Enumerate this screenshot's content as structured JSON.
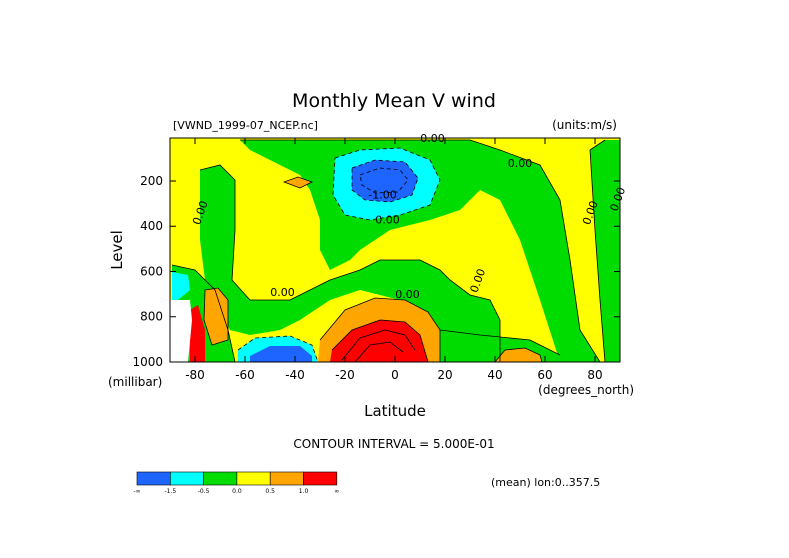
{
  "chart_data": {
    "type": "heatmap",
    "title": "Monthly Mean V wind",
    "dataset_label": "[VWND_1999-07_NCEP.nc]",
    "units_label": "(units:m/s)",
    "xlabel": "Latitude",
    "x_units_label": "(degrees_north)",
    "ylabel": "Level",
    "y_units_label": "(millibar)",
    "xlim": [
      -90,
      90
    ],
    "ylim": [
      1000,
      10
    ],
    "x_ticks": [
      -80,
      -60,
      -40,
      -20,
      0,
      20,
      40,
      60,
      80
    ],
    "x_tick_labels": [
      "-80",
      "-60",
      "-40",
      "-20",
      "0",
      "20",
      "40",
      "60",
      "80"
    ],
    "y_ticks": [
      200,
      400,
      600,
      800,
      1000
    ],
    "y_tick_labels": [
      "200",
      "400",
      "600",
      "800",
      "1000"
    ],
    "contour_interval_label": "CONTOUR INTERVAL = 5.000E-01",
    "footnote": "(mean) lon:0..357.5",
    "contour_labels": [
      {
        "text": "0.00",
        "lat": 15,
        "level": 10
      },
      {
        "text": "0.00",
        "lat": 50,
        "level": 120
      },
      {
        "text": "-1.00",
        "lat": -5,
        "level": 260
      },
      {
        "text": "0.00",
        "lat": -3,
        "level": 370
      },
      {
        "text": "0.00",
        "lat": -78,
        "level": 340
      },
      {
        "text": "0.00",
        "lat": 78,
        "level": 340
      },
      {
        "text": "0.00",
        "lat": 89,
        "level": 280
      },
      {
        "text": "0.00",
        "lat": 33,
        "level": 640
      },
      {
        "text": "0.00",
        "lat": 5,
        "level": 700
      },
      {
        "text": "0.00",
        "lat": -45,
        "level": 690
      }
    ],
    "colorbar": {
      "colors": [
        "#1e64ff",
        "#00ffff",
        "#00dc00",
        "#ffff00",
        "#ffa500",
        "#ff0000"
      ],
      "labels": [
        "-∞",
        "-1.5",
        "-0.5",
        "0.0",
        "0.5",
        "1.0",
        "∞"
      ]
    }
  }
}
